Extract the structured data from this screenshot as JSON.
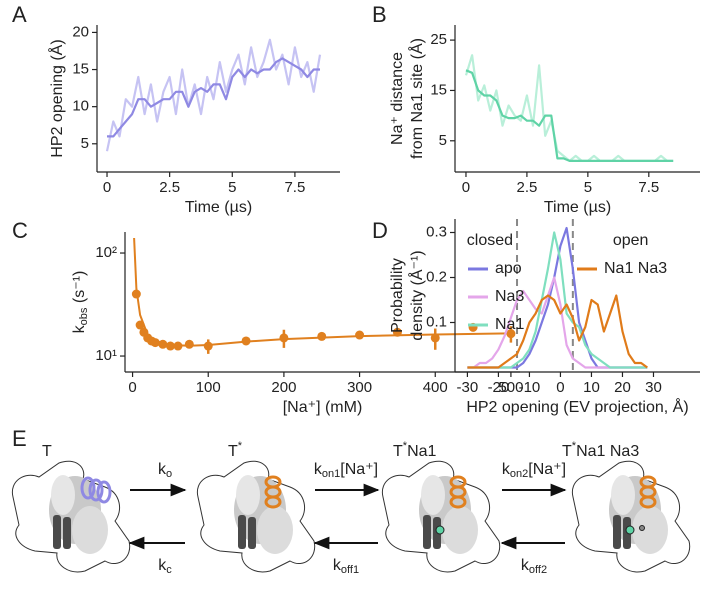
{
  "chart_data": [
    {
      "type": "line",
      "panel": "A",
      "ylabel": [
        "HP2 opening (Å)"
      ],
      "xlabel": "Time (µs)",
      "x": [
        0,
        0.25,
        0.5,
        0.75,
        1,
        1.25,
        1.5,
        1.75,
        2,
        2.25,
        2.5,
        2.75,
        3,
        3.25,
        3.5,
        3.75,
        4,
        4.25,
        4.5,
        4.75,
        5,
        5.25,
        5.5,
        5.75,
        6,
        6.25,
        6.5,
        6.75,
        7,
        7.25,
        7.5,
        7.75,
        8,
        8.25,
        8.5
      ],
      "series": [
        {
          "color": "#c6c3f3",
          "values": [
            4,
            8,
            6,
            11,
            10,
            14,
            9,
            13,
            8,
            12,
            14,
            9,
            15,
            10,
            13,
            9,
            14,
            11,
            16,
            12,
            15,
            17,
            13,
            18,
            14,
            16,
            19,
            15,
            17,
            13,
            18,
            14,
            16,
            12,
            17
          ]
        },
        {
          "color": "#8f89e3",
          "values": [
            6,
            6,
            7,
            8,
            9,
            11,
            11,
            10,
            10.5,
            11,
            11,
            12,
            12,
            10,
            12,
            12.5,
            12,
            13,
            13,
            11,
            14,
            15,
            14,
            15,
            14.5,
            15,
            15,
            16,
            16.5,
            16,
            15.5,
            15,
            14,
            15,
            15
          ]
        }
      ],
      "xlim": [
        -0.4,
        9.3
      ],
      "ylim": [
        1.2,
        21
      ],
      "xticks": [
        0,
        2.5,
        5,
        7.5
      ],
      "yticks": [
        5,
        10,
        15,
        20
      ]
    },
    {
      "type": "line",
      "panel": "B",
      "ylabel": [
        "Na⁺ distance",
        "from Na1 site (Å)"
      ],
      "xlabel": "Time (µs)",
      "x": [
        0,
        0.25,
        0.5,
        0.75,
        1,
        1.25,
        1.5,
        1.75,
        2,
        2.25,
        2.5,
        2.75,
        3,
        3.25,
        3.5,
        3.75,
        4,
        4.25,
        4.5,
        4.75,
        5,
        5.25,
        5.5,
        5.75,
        6,
        6.25,
        6.5,
        6.75,
        7,
        7.25,
        7.5,
        7.75,
        8,
        8.25,
        8.5
      ],
      "series": [
        {
          "color": "#b9efd9",
          "values": [
            18,
            22,
            13,
            16,
            11,
            15,
            8,
            12,
            10,
            9,
            14,
            8,
            20,
            6,
            9,
            3,
            2,
            1,
            2,
            1,
            1,
            2,
            1,
            1,
            1,
            2,
            1,
            1,
            1,
            1,
            1,
            1,
            2,
            1,
            1
          ]
        },
        {
          "color": "#5fd3a6",
          "values": [
            19,
            18.5,
            15,
            14,
            14,
            13,
            10,
            9.5,
            9.5,
            10,
            9,
            9,
            8,
            10,
            10,
            1.5,
            1.5,
            1,
            1,
            1,
            1,
            1,
            1,
            1,
            1,
            1,
            1,
            1,
            1,
            1,
            1,
            1,
            1,
            1,
            1
          ]
        }
      ],
      "xlim": [
        -0.45,
        9.6
      ],
      "ylim": [
        -1.2,
        28
      ],
      "xticks": [
        0,
        2.5,
        5,
        7.5
      ],
      "yticks": [
        5,
        15,
        25
      ]
    },
    {
      "type": "scatter",
      "panel": "C",
      "ylabel_parts": [
        "k",
        "obs",
        " (s⁻¹)"
      ],
      "xlabel": "[Na⁺] (mM)",
      "color": "#e0801f",
      "ylog": true,
      "x": [
        5,
        10,
        15,
        20,
        25,
        30,
        40,
        50,
        60,
        75,
        100,
        150,
        200,
        250,
        300,
        350,
        400,
        450,
        500
      ],
      "values": [
        40,
        20,
        17,
        15,
        14,
        13.5,
        13,
        12.5,
        12.5,
        13,
        12.5,
        14,
        15,
        15.5,
        16,
        17,
        15,
        19,
        16.5
      ],
      "errors": [
        null,
        null,
        null,
        null,
        null,
        null,
        null,
        null,
        null,
        null,
        2,
        null,
        3,
        null,
        null,
        null,
        3.5,
        null,
        3
      ],
      "fit": {
        "x": [
          2,
          5,
          10,
          20,
          30,
          50,
          75,
          100,
          150,
          200,
          300,
          400,
          500
        ],
        "values": [
          140,
          45,
          25,
          16,
          14,
          12.8,
          12.6,
          12.8,
          13.8,
          14.6,
          15.6,
          16.2,
          16.6
        ]
      },
      "xlim": [
        -10,
        512
      ],
      "ylim": [
        7,
        160
      ],
      "xticks": [
        0,
        100,
        200,
        300,
        400,
        500
      ],
      "yticks": [
        {
          "value": 10,
          "label": "10¹"
        },
        {
          "value": 100,
          "label": "10²"
        }
      ]
    },
    {
      "type": "line",
      "panel": "D",
      "ylabel": [
        "Probability",
        "density (Å⁻¹)"
      ],
      "xlabel": "HP2 opening (EV projection, Å)",
      "x": [
        -30,
        -28,
        -26,
        -24,
        -22,
        -20,
        -18,
        -16,
        -14,
        -12,
        -10,
        -8,
        -6,
        -4,
        -2,
        0,
        2,
        4,
        6,
        8,
        10,
        12,
        14,
        16,
        18,
        20,
        22,
        24,
        26,
        28
      ],
      "series": [
        {
          "name": "apo",
          "color": "#7b78e0",
          "values": [
            0,
            0,
            0,
            0,
            0,
            0,
            0,
            0,
            0,
            0.01,
            0.03,
            0.06,
            0.1,
            0.14,
            0.2,
            0.27,
            0.31,
            0.22,
            0.1,
            0.06,
            0.02,
            0,
            0,
            0,
            0,
            0,
            0,
            0,
            0,
            0
          ]
        },
        {
          "name": "Na3",
          "color": "#e4a6ea",
          "values": [
            0,
            0,
            0.01,
            0.01,
            0.02,
            0.04,
            0.07,
            0.11,
            0.15,
            0.17,
            0.15,
            0.13,
            0.12,
            0.16,
            0.2,
            0.14,
            0.05,
            0.02,
            0.01,
            0,
            0,
            0,
            0,
            0,
            0,
            0,
            0,
            0,
            0,
            0
          ]
        },
        {
          "name": "Na1",
          "color": "#7fdfbf",
          "values": [
            0,
            0,
            0,
            0,
            0,
            0,
            0,
            0,
            0.01,
            0.02,
            0.04,
            0.08,
            0.15,
            0.22,
            0.3,
            0.24,
            0.12,
            0.1,
            0.09,
            0.05,
            0.03,
            0.02,
            0.01,
            0,
            0,
            0,
            0,
            0,
            0,
            0
          ]
        },
        {
          "name": "Na1 Na3",
          "color": "#e07b1a",
          "values": [
            0,
            0,
            0,
            0,
            0,
            0,
            0.01,
            0.02,
            0.03,
            0.06,
            0.1,
            0.12,
            0.15,
            0.16,
            0.15,
            0.12,
            0.14,
            0.11,
            0.06,
            0.09,
            0.15,
            0.14,
            0.08,
            0.12,
            0.16,
            0.08,
            0.03,
            0.01,
            0.01,
            0
          ]
        }
      ],
      "vlines": [
        {
          "value": -14,
          "label": "closed"
        },
        {
          "value": 4,
          "label": "open"
        }
      ],
      "xlim": [
        -34,
        45
      ],
      "ylim": [
        -0.01,
        0.33
      ],
      "xticks": [
        -30,
        -20,
        -10,
        0,
        10,
        20,
        30
      ],
      "yticks": [
        0.1,
        0.2,
        0.3
      ]
    }
  ],
  "scheme": {
    "panel": "E",
    "states": [
      [
        "T"
      ],
      [
        "T",
        "*"
      ],
      [
        "T",
        "*",
        "Na1"
      ],
      [
        "T",
        "*",
        "Na1 Na3"
      ]
    ],
    "forward": [
      [
        "k",
        "o"
      ],
      [
        "k",
        "on1",
        "[Na⁺]"
      ],
      [
        "k",
        "on2",
        "[Na⁺]"
      ]
    ],
    "backward": [
      [
        "k",
        "c"
      ],
      [
        "k",
        "off1"
      ],
      [
        "k",
        "off2"
      ]
    ]
  }
}
